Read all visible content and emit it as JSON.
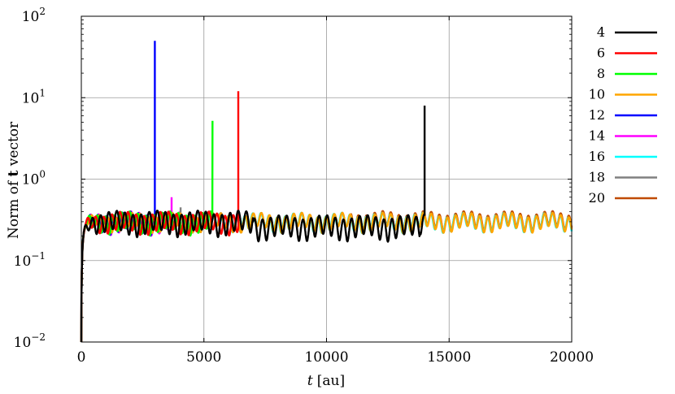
{
  "chart_data": {
    "type": "line",
    "xlabel": {
      "italic": "t",
      "rest": "[au]"
    },
    "ylabel": {
      "pre": "Norm of ",
      "bold": "t",
      "post": " vector"
    },
    "xlim": [
      0,
      20000
    ],
    "ylim": [
      0.01,
      100
    ],
    "yscale": "log",
    "grid": true,
    "legend_position": "right",
    "x_ticks": [
      {
        "value": 0,
        "label": "0"
      },
      {
        "value": 5000,
        "label": "5000"
      },
      {
        "value": 10000,
        "label": "10000"
      },
      {
        "value": 15000,
        "label": "15000"
      },
      {
        "value": 20000,
        "label": "20000"
      }
    ],
    "y_ticks": [
      {
        "value": 0.01,
        "base": "10",
        "exp": "−2"
      },
      {
        "value": 0.1,
        "base": "10",
        "exp": "−1"
      },
      {
        "value": 1,
        "base": "10",
        "exp": "0"
      },
      {
        "value": 10,
        "base": "10",
        "exp": "1"
      },
      {
        "value": 100,
        "base": "10",
        "exp": "2"
      }
    ],
    "series": [
      {
        "name": "4",
        "color": "#000000",
        "end_x": 14000,
        "peak": 8.0,
        "phase": 0.9,
        "amp": 0.28
      },
      {
        "name": "6",
        "color": "#ff0000",
        "end_x": 6400,
        "peak": 12.0,
        "phase": 0.5,
        "amp": 0.25
      },
      {
        "name": "8",
        "color": "#00ff00",
        "end_x": 5350,
        "peak": 5.2,
        "phase": 0.3,
        "amp": 0.25
      },
      {
        "name": "10",
        "color": "#ffa500",
        "end_x": 20000,
        "peak": null,
        "phase": 0.0,
        "amp": 0.2
      },
      {
        "name": "12",
        "color": "#0000ff",
        "end_x": 3000,
        "peak": 50.0,
        "phase": 0.2,
        "amp": 0.25
      },
      {
        "name": "14",
        "color": "#ff00ff",
        "end_x": 3680,
        "peak": 0.6,
        "phase": 0.1,
        "amp": 0.25
      },
      {
        "name": "16",
        "color": "#00ffff",
        "end_x": 20000,
        "peak": null,
        "phase": 0.05,
        "amp": 0.2
      },
      {
        "name": "18",
        "color": "#808080",
        "end_x": 4050,
        "peak": 0.45,
        "phase": 0.15,
        "amp": 0.25
      },
      {
        "name": "20",
        "color": "#c04a00",
        "end_x": 20000,
        "peak": null,
        "phase": 0.0,
        "amp": 0.2
      }
    ]
  }
}
